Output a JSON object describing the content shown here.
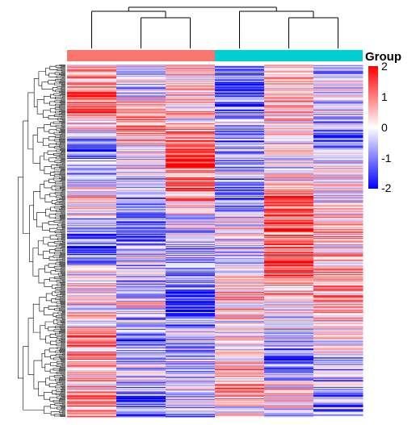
{
  "chart_data": {
    "type": "heatmap",
    "title": "",
    "columns": 6,
    "groups": [
      {
        "color": "#f8766d",
        "columns": [
          0,
          1,
          2
        ]
      },
      {
        "color": "#00cfd1",
        "columns": [
          3,
          4,
          5
        ]
      }
    ],
    "legend": {
      "title": "Group",
      "ticks": [
        "2",
        "1",
        "0",
        "-1",
        "-2"
      ],
      "range": [
        -2,
        2
      ],
      "colors": {
        "low": "#0000ff",
        "mid": "#ffffff",
        "high": "#ff0000"
      }
    },
    "row_dendrogram": true,
    "column_dendrogram": "((1,(2,3)),((4,5),6))",
    "approx_row_count": 400,
    "row_profiles": [
      [
        0.2,
        -0.2,
        0.6,
        -1.4,
        0.3,
        -0.9
      ],
      [
        1.6,
        -0.5,
        0.4,
        -2.0,
        0.9,
        -0.3
      ],
      [
        0.9,
        1.4,
        0.2,
        -0.6,
        0.7,
        -0.5
      ],
      [
        -1.8,
        0.5,
        1.9,
        -1.2,
        -0.4,
        -1.5
      ],
      [
        -0.6,
        -0.3,
        1.7,
        -0.4,
        0.2,
        0.6
      ],
      [
        0.3,
        -1.1,
        0.8,
        -1.3,
        2.0,
        -0.2
      ],
      [
        -0.9,
        -1.7,
        -0.5,
        0.3,
        1.3,
        1.1
      ],
      [
        -1.6,
        -0.2,
        -0.8,
        -0.6,
        1.6,
        0.4
      ],
      [
        0.4,
        -0.6,
        -1.2,
        0.7,
        0.9,
        1.0
      ],
      [
        -0.3,
        0.2,
        -1.9,
        0.5,
        -0.2,
        0.8
      ],
      [
        1.1,
        -1.6,
        -0.4,
        -0.1,
        -0.3,
        0.2
      ],
      [
        0.8,
        -0.4,
        -0.7,
        0.4,
        -1.8,
        -0.6
      ],
      [
        0.6,
        -0.9,
        -0.3,
        1.2,
        0.6,
        -0.9
      ],
      [
        1.5,
        -1.9,
        -0.9,
        -0.5,
        -0.7,
        -1.1
      ]
    ]
  }
}
